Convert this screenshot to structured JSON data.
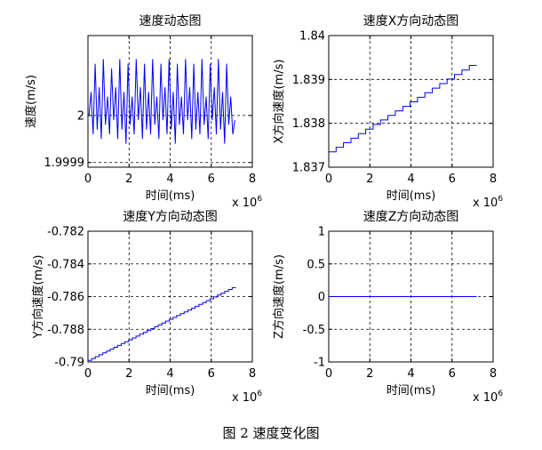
{
  "caption": "图 2  速度变化图",
  "chart_data": [
    {
      "type": "line",
      "title": "速度动态图",
      "xlabel": "时间(ms)",
      "ylabel": "速度(m/s)",
      "x_exponent": "x 10^6",
      "xlim": [
        0,
        8
      ],
      "ylim": [
        1.99989,
        2.00017
      ],
      "xticks": [
        "0",
        "2",
        "4",
        "6",
        "8"
      ],
      "yticks": [
        {
          "v": 1.9999,
          "label": "1.9999"
        },
        {
          "v": 2.0,
          "label": "2"
        }
      ],
      "grid": true,
      "color": "#0000ff",
      "x": [
        0.05,
        0.15,
        0.25,
        0.35,
        0.45,
        0.55,
        0.65,
        0.75,
        0.85,
        0.95,
        1.05,
        1.15,
        1.25,
        1.35,
        1.45,
        1.55,
        1.65,
        1.75,
        1.85,
        1.95,
        2.05,
        2.15,
        2.25,
        2.35,
        2.45,
        2.55,
        2.65,
        2.75,
        2.85,
        2.95,
        3.05,
        3.15,
        3.25,
        3.35,
        3.45,
        3.55,
        3.65,
        3.75,
        3.85,
        3.95,
        4.05,
        4.15,
        4.25,
        4.35,
        4.45,
        4.55,
        4.65,
        4.75,
        4.85,
        4.95,
        5.05,
        5.15,
        5.25,
        5.35,
        5.45,
        5.55,
        5.65,
        5.75,
        5.85,
        5.95,
        6.05,
        6.15,
        6.25,
        6.35,
        6.45,
        6.55,
        6.65,
        6.75,
        6.85,
        6.95,
        7.05,
        7.15
      ],
      "values": [
        2.0,
        2.00005,
        1.99996,
        2.00011,
        1.99997,
        2.00006,
        1.99995,
        2.00012,
        1.99998,
        2.00004,
        1.99996,
        2.0001,
        1.99999,
        2.00006,
        1.99995,
        2.00012,
        1.99997,
        2.00005,
        1.99994,
        2.00011,
        1.99998,
        2.00004,
        1.99996,
        2.00012,
        1.99999,
        2.00006,
        1.99995,
        2.00011,
        1.99997,
        2.00005,
        1.99996,
        2.00012,
        1.99998,
        2.00004,
        1.99995,
        2.00011,
        1.99999,
        2.00006,
        1.99996,
        2.00012,
        1.99997,
        2.00005,
        1.99994,
        2.00011,
        1.99998,
        2.00004,
        1.99996,
        2.00012,
        1.99999,
        2.00006,
        1.99995,
        2.00011,
        1.99997,
        2.00005,
        1.99996,
        2.00012,
        1.99998,
        2.00004,
        1.99995,
        2.00011,
        1.99999,
        2.00006,
        1.99996,
        2.00012,
        1.99997,
        2.00005,
        1.99994,
        2.00011,
        1.99998,
        2.00004,
        1.99996,
        1.99999
      ]
    },
    {
      "type": "line",
      "title": "速度X方向动态图",
      "xlabel": "时间(ms)",
      "ylabel": "X方向速度(m/s)",
      "x_exponent": "x 10^6",
      "xlim": [
        0,
        8
      ],
      "ylim": [
        1.837,
        1.84
      ],
      "xticks": [
        "0",
        "2",
        "4",
        "6",
        "8"
      ],
      "yticks": [
        {
          "v": 1.837,
          "label": "1.837"
        },
        {
          "v": 1.838,
          "label": "1.838"
        },
        {
          "v": 1.839,
          "label": "1.839"
        },
        {
          "v": 1.84,
          "label": "1.84"
        }
      ],
      "grid": true,
      "color": "#0000ff",
      "steps": {
        "x_start": 0,
        "x_end": 7.2,
        "y_start": 1.83735,
        "y_end": 1.83932,
        "count": 20
      }
    },
    {
      "type": "line",
      "title": "速度Y方向动态图",
      "xlabel": "时间(ms)",
      "ylabel": "Y方向速度(m/s)",
      "x_exponent": "x 10^6",
      "xlim": [
        0,
        8
      ],
      "ylim": [
        -0.79,
        -0.782
      ],
      "xticks": [
        "0",
        "2",
        "4",
        "6",
        "8"
      ],
      "yticks": [
        {
          "v": -0.79,
          "label": "-0.79"
        },
        {
          "v": -0.788,
          "label": "-0.788"
        },
        {
          "v": -0.786,
          "label": "-0.786"
        },
        {
          "v": -0.784,
          "label": "-0.784"
        },
        {
          "v": -0.782,
          "label": "-0.782"
        }
      ],
      "grid": true,
      "color": "#0000ff",
      "steps": {
        "x_start": 0,
        "x_end": 7.2,
        "y_start": -0.7899,
        "y_end": -0.78545,
        "count": 40
      }
    },
    {
      "type": "line",
      "title": "速度Z方向动态图",
      "xlabel": "时间(ms)",
      "ylabel": "Z方向速度(m/s)",
      "x_exponent": "x 10^6",
      "xlim": [
        0,
        8
      ],
      "ylim": [
        -1,
        1
      ],
      "xticks": [
        "0",
        "2",
        "4",
        "6",
        "8"
      ],
      "yticks": [
        {
          "v": -1,
          "label": "-1"
        },
        {
          "v": -0.5,
          "label": "-0.5"
        },
        {
          "v": 0,
          "label": "0"
        },
        {
          "v": 0.5,
          "label": "0.5"
        },
        {
          "v": 1,
          "label": "1"
        }
      ],
      "grid": true,
      "color": "#0000ff",
      "x": [
        0,
        7.2
      ],
      "values": [
        0,
        0
      ]
    }
  ]
}
